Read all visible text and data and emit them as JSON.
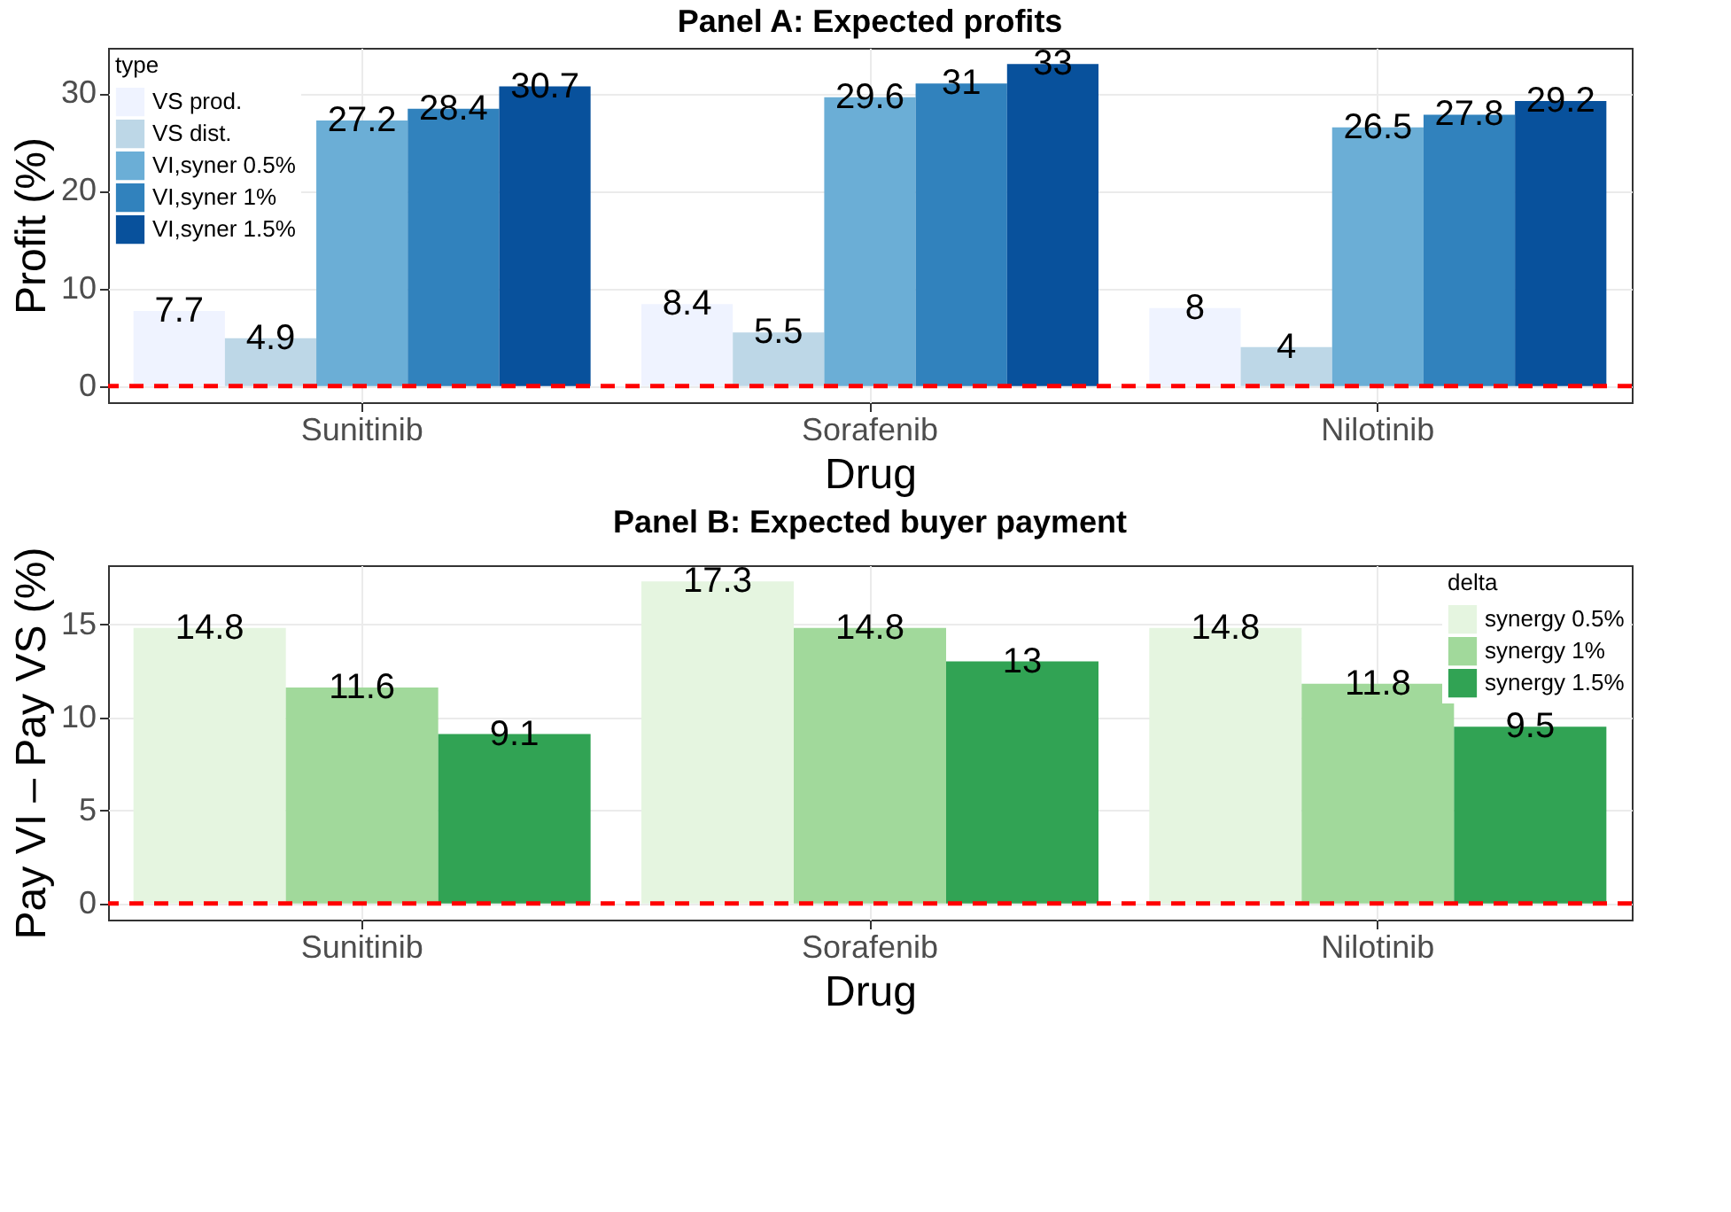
{
  "chart_data": [
    {
      "type": "bar",
      "title": "Panel A: Expected profits",
      "xlabel": "Drug",
      "ylabel": "Profit (%)",
      "legend_title": "type",
      "categories": [
        "Sunitinib",
        "Sorafenib",
        "Nilotinib"
      ],
      "series": [
        {
          "name": "VS prod.",
          "color": "#eff3ff",
          "values": [
            7.7,
            8.4,
            8
          ]
        },
        {
          "name": "VS dist.",
          "color": "#bdd7e7",
          "values": [
            4.9,
            5.5,
            4
          ]
        },
        {
          "name": "VI,syner 0.5%",
          "color": "#6baed6",
          "values": [
            27.2,
            29.6,
            26.5
          ]
        },
        {
          "name": "VI,syner 1%",
          "color": "#3182bd",
          "values": [
            28.4,
            31,
            27.8
          ]
        },
        {
          "name": "VI,syner 1.5%",
          "color": "#08519c",
          "values": [
            30.7,
            33,
            29.2
          ]
        }
      ],
      "ylim": [
        -1.65,
        34.65
      ],
      "yticks": [
        0,
        10,
        20,
        30
      ],
      "grid": true,
      "legend": "top left",
      "data_labels": true,
      "ref_lines": [
        {
          "axis": "y",
          "value": 0,
          "color": "#ff0000",
          "line_style": "dashed"
        }
      ]
    },
    {
      "type": "bar",
      "title": "Panel B: Expected buyer payment",
      "xlabel": "Drug",
      "ylabel": "Pay VI – Pay VS (%)",
      "legend_title": "delta",
      "categories": [
        "Sunitinib",
        "Sorafenib",
        "Nilotinib"
      ],
      "series": [
        {
          "name": "synergy 0.5%",
          "color": "#e5f5e0",
          "values": [
            14.8,
            17.3,
            14.8
          ]
        },
        {
          "name": "synergy 1%",
          "color": "#a1d99b",
          "values": [
            11.6,
            14.8,
            11.8
          ]
        },
        {
          "name": "synergy 1.5%",
          "color": "#31a354",
          "values": [
            9.1,
            13,
            9.5
          ]
        }
      ],
      "ylim": [
        -0.865,
        18.165
      ],
      "yticks": [
        0,
        5,
        10,
        15
      ],
      "grid": true,
      "legend": "top right",
      "data_labels": true,
      "ref_lines": [
        {
          "axis": "y",
          "value": 0,
          "color": "#ff0000",
          "line_style": "dashed"
        }
      ]
    }
  ]
}
